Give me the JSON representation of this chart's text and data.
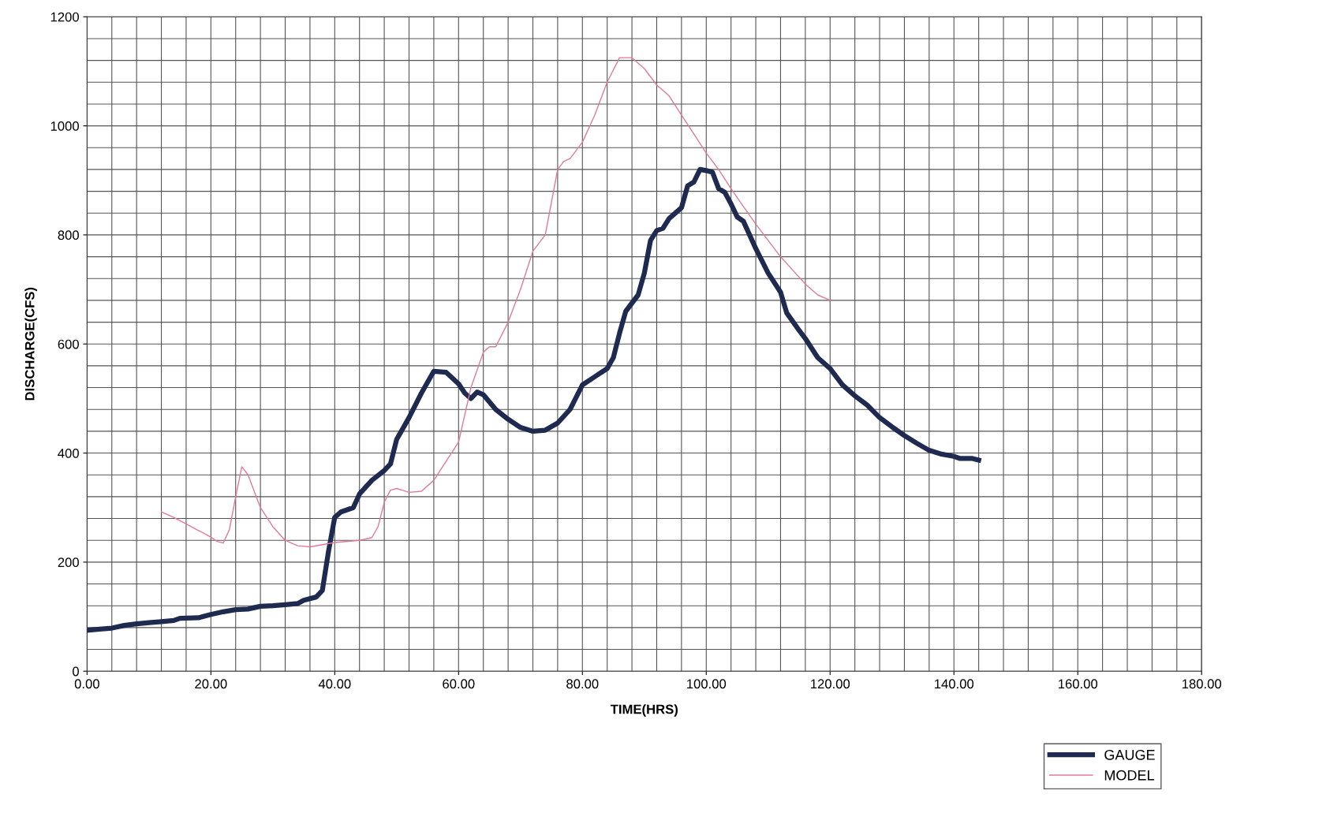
{
  "chart_data": {
    "type": "line",
    "xlabel": "TIME(HRS)",
    "ylabel": "DISCHARGE(CFS)",
    "xlim": [
      0,
      180
    ],
    "xticks": [
      {
        "value": 0,
        "label": "0.00"
      },
      {
        "value": 20,
        "label": "20.00"
      },
      {
        "value": 40,
        "label": "40.00"
      },
      {
        "value": 60,
        "label": "60.00"
      },
      {
        "value": 80,
        "label": "80.00"
      },
      {
        "value": 100,
        "label": "100.00"
      },
      {
        "value": 120,
        "label": "120.00"
      },
      {
        "value": 140,
        "label": "140.00"
      },
      {
        "value": 160,
        "label": "160.00"
      },
      {
        "value": 180,
        "label": "180.00"
      }
    ],
    "ylim": [
      0,
      1200
    ],
    "yticks": [
      0,
      200,
      400,
      600,
      800,
      1000,
      1200
    ],
    "grid": true,
    "legend": "bottom right",
    "marker": "none",
    "line_style": "solid",
    "series": [
      {
        "name": "GAUGE",
        "color": "#1f2a50",
        "x": [
          0,
          2,
          4,
          6,
          8,
          10,
          12,
          14,
          15,
          18,
          20,
          22,
          24,
          26,
          28,
          30,
          32,
          34,
          35,
          37,
          38,
          39,
          40,
          41,
          43,
          44,
          46,
          48,
          49,
          50,
          52,
          54,
          56,
          58,
          60,
          61,
          62,
          63,
          64,
          66,
          68,
          70,
          72,
          74,
          76,
          78,
          80,
          82,
          84,
          85,
          86,
          87,
          89,
          90,
          91,
          92,
          93,
          94,
          96,
          97,
          98,
          99,
          100,
          101,
          102,
          103,
          104,
          105,
          106,
          108,
          110,
          112,
          113,
          115,
          116,
          118,
          120,
          122,
          124,
          126,
          128,
          130,
          132,
          134,
          136,
          138,
          140,
          141,
          143,
          144
        ],
        "values": [
          75,
          77,
          79,
          84,
          87,
          89,
          91,
          93,
          97,
          98,
          104,
          109,
          113,
          114,
          119,
          120,
          122,
          124,
          130,
          136,
          148,
          220,
          282,
          292,
          300,
          325,
          350,
          368,
          380,
          425,
          465,
          510,
          550,
          548,
          527,
          510,
          500,
          512,
          507,
          480,
          462,
          447,
          440,
          442,
          455,
          480,
          525,
          540,
          555,
          575,
          620,
          660,
          690,
          730,
          790,
          808,
          812,
          830,
          850,
          890,
          897,
          920,
          918,
          915,
          885,
          878,
          857,
          833,
          825,
          775,
          730,
          695,
          657,
          625,
          610,
          575,
          555,
          525,
          505,
          488,
          465,
          448,
          432,
          418,
          405,
          398,
          394,
          390,
          390,
          387
        ]
      },
      {
        "name": "MODEL",
        "color": "#e07a9a",
        "x": [
          12,
          14,
          16,
          18,
          20,
          21,
          22,
          23,
          24,
          25,
          26,
          28,
          30,
          32,
          34,
          36,
          38,
          40,
          44,
          46,
          47,
          48,
          49,
          50,
          52,
          54,
          56,
          58,
          60,
          62,
          64,
          65,
          66,
          68,
          70,
          72,
          74,
          76,
          77,
          78,
          80,
          82,
          84,
          86,
          88,
          90,
          92,
          94,
          96,
          98,
          100,
          102,
          104,
          106,
          108,
          110,
          112,
          114,
          116,
          118,
          120
        ],
        "values": [
          292,
          282,
          270,
          258,
          246,
          238,
          235,
          260,
          320,
          375,
          360,
          300,
          265,
          240,
          230,
          228,
          232,
          236,
          240,
          245,
          265,
          310,
          332,
          335,
          328,
          330,
          350,
          385,
          420,
          520,
          585,
          595,
          595,
          640,
          700,
          770,
          800,
          920,
          935,
          940,
          970,
          1020,
          1080,
          1125,
          1125,
          1105,
          1075,
          1055,
          1020,
          985,
          950,
          920,
          885,
          852,
          820,
          790,
          760,
          735,
          710,
          690,
          680
        ]
      }
    ]
  }
}
